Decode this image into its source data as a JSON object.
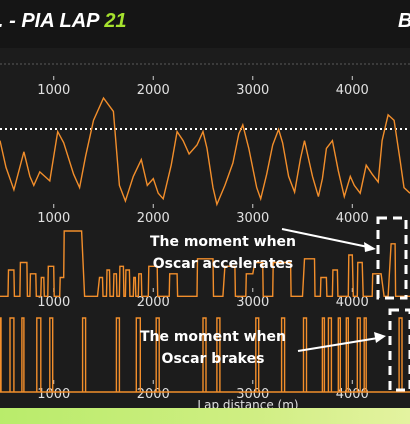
{
  "header": {
    "title_prefix": ". - PIA LAP ",
    "title_number": "21",
    "title_right": "B",
    "accent_color": "#a6e22e"
  },
  "chart_data": {
    "type": "line",
    "xlabel": "Lap distance (m)",
    "xlim": [
      460,
      4580
    ],
    "x_ticks": [
      "1000",
      "2000",
      "3000",
      "4000"
    ],
    "panels": [
      {
        "name": "speed",
        "reference_line": true,
        "ylim": [
          0,
          1
        ],
        "x": [
          460,
          520,
          600,
          700,
          760,
          800,
          860,
          960,
          1040,
          1100,
          1200,
          1260,
          1320,
          1400,
          1500,
          1600,
          1660,
          1720,
          1800,
          1880,
          1940,
          2000,
          2050,
          2100,
          2180,
          2240,
          2300,
          2360,
          2440,
          2500,
          2540,
          2600,
          2640,
          2720,
          2800,
          2860,
          2900,
          2960,
          3040,
          3080,
          3140,
          3200,
          3260,
          3300,
          3360,
          3420,
          3480,
          3520,
          3600,
          3660,
          3700,
          3740,
          3800,
          3860,
          3920,
          3980,
          4020,
          4080,
          4140,
          4200,
          4260,
          4300,
          4360,
          4420,
          4480,
          4520,
          4580
        ],
        "y": [
          0.62,
          0.38,
          0.18,
          0.52,
          0.3,
          0.22,
          0.34,
          0.26,
          0.7,
          0.6,
          0.32,
          0.2,
          0.48,
          0.8,
          1.0,
          0.88,
          0.22,
          0.08,
          0.3,
          0.45,
          0.22,
          0.28,
          0.15,
          0.1,
          0.4,
          0.7,
          0.62,
          0.5,
          0.58,
          0.7,
          0.55,
          0.2,
          0.05,
          0.22,
          0.42,
          0.68,
          0.76,
          0.55,
          0.2,
          0.1,
          0.32,
          0.58,
          0.72,
          0.6,
          0.3,
          0.16,
          0.46,
          0.62,
          0.3,
          0.12,
          0.28,
          0.55,
          0.62,
          0.35,
          0.12,
          0.3,
          0.22,
          0.15,
          0.4,
          0.32,
          0.25,
          0.62,
          0.85,
          0.8,
          0.45,
          0.2,
          0.15
        ]
      },
      {
        "name": "throttle",
        "ylim": [
          0,
          1
        ],
        "x": [
          460,
          540,
          545,
          600,
          605,
          660,
          665,
          730,
          735,
          760,
          765,
          820,
          825,
          870,
          875,
          900,
          905,
          940,
          945,
          1000,
          1005,
          1060,
          1065,
          1100,
          1105,
          1280,
          1310,
          1440,
          1460,
          1490,
          1495,
          1530,
          1535,
          1560,
          1565,
          1600,
          1605,
          1630,
          1635,
          1660,
          1665,
          1700,
          1705,
          1720,
          1725,
          1760,
          1765,
          1800,
          1805,
          1820,
          1825,
          1850,
          1855,
          1880,
          1885,
          1950,
          1955,
          2040,
          2045,
          2160,
          2165,
          2240,
          2245,
          2440,
          2445,
          2600,
          2605,
          2700,
          2720,
          2820,
          2825,
          2930,
          2935,
          3000,
          3020,
          3100,
          3105,
          3200,
          3205,
          3380,
          3385,
          3500,
          3520,
          3620,
          3625,
          3680,
          3685,
          3740,
          3745,
          3800,
          3805,
          3850,
          3855,
          3960,
          3965,
          4000,
          4010,
          4050,
          4055,
          4100,
          4110,
          4200,
          4205,
          4290,
          4320,
          4360,
          4390,
          4430,
          4435,
          4580
        ],
        "y": [
          0.05,
          0.05,
          0.4,
          0.4,
          0.05,
          0.05,
          0.5,
          0.5,
          0.05,
          0.05,
          0.35,
          0.35,
          0.05,
          0.05,
          0.3,
          0.3,
          0.05,
          0.05,
          0.45,
          0.45,
          0.05,
          0.05,
          0.3,
          0.3,
          0.92,
          0.92,
          0.05,
          0.05,
          0.3,
          0.3,
          0.05,
          0.05,
          0.4,
          0.4,
          0.05,
          0.05,
          0.35,
          0.35,
          0.05,
          0.05,
          0.45,
          0.45,
          0.05,
          0.05,
          0.4,
          0.4,
          0.05,
          0.05,
          0.3,
          0.3,
          0.05,
          0.05,
          0.35,
          0.35,
          0.05,
          0.05,
          0.45,
          0.45,
          0.05,
          0.05,
          0.35,
          0.35,
          0.05,
          0.05,
          0.55,
          0.55,
          0.05,
          0.05,
          0.45,
          0.45,
          0.05,
          0.05,
          0.35,
          0.35,
          0.5,
          0.5,
          0.05,
          0.05,
          0.5,
          0.5,
          0.05,
          0.05,
          0.55,
          0.55,
          0.05,
          0.05,
          0.3,
          0.3,
          0.05,
          0.05,
          0.4,
          0.4,
          0.05,
          0.05,
          0.6,
          0.6,
          0.05,
          0.05,
          0.5,
          0.5,
          0.05,
          0.05,
          0.35,
          0.35,
          0.05,
          0.05,
          0.75,
          0.75,
          0.05,
          0.05
        ]
      },
      {
        "name": "brake",
        "ylim": [
          0,
          1
        ],
        "segments": [
          [
            460,
            470
          ],
          [
            560,
            600
          ],
          [
            680,
            700
          ],
          [
            830,
            870
          ],
          [
            960,
            990
          ],
          [
            1290,
            1320
          ],
          [
            1630,
            1660
          ],
          [
            1830,
            1870
          ],
          [
            2030,
            2060
          ],
          [
            2500,
            2530
          ],
          [
            2640,
            2670
          ],
          [
            3030,
            3060
          ],
          [
            3290,
            3320
          ],
          [
            3510,
            3540
          ],
          [
            3700,
            3720
          ],
          [
            3760,
            3790
          ],
          [
            3860,
            3880
          ],
          [
            3940,
            3960
          ],
          [
            4050,
            4080
          ],
          [
            4120,
            4140
          ],
          [
            4470,
            4500
          ]
        ]
      }
    ]
  },
  "annotations": {
    "accel_line1": "The moment when",
    "accel_line2": "Oscar accelerates",
    "brake_line1": "The moment when",
    "brake_line2": "Oscar brakes"
  },
  "colors": {
    "trace": "#f28e2b",
    "background": "#1c1c1c",
    "band": "#cdee7f"
  }
}
